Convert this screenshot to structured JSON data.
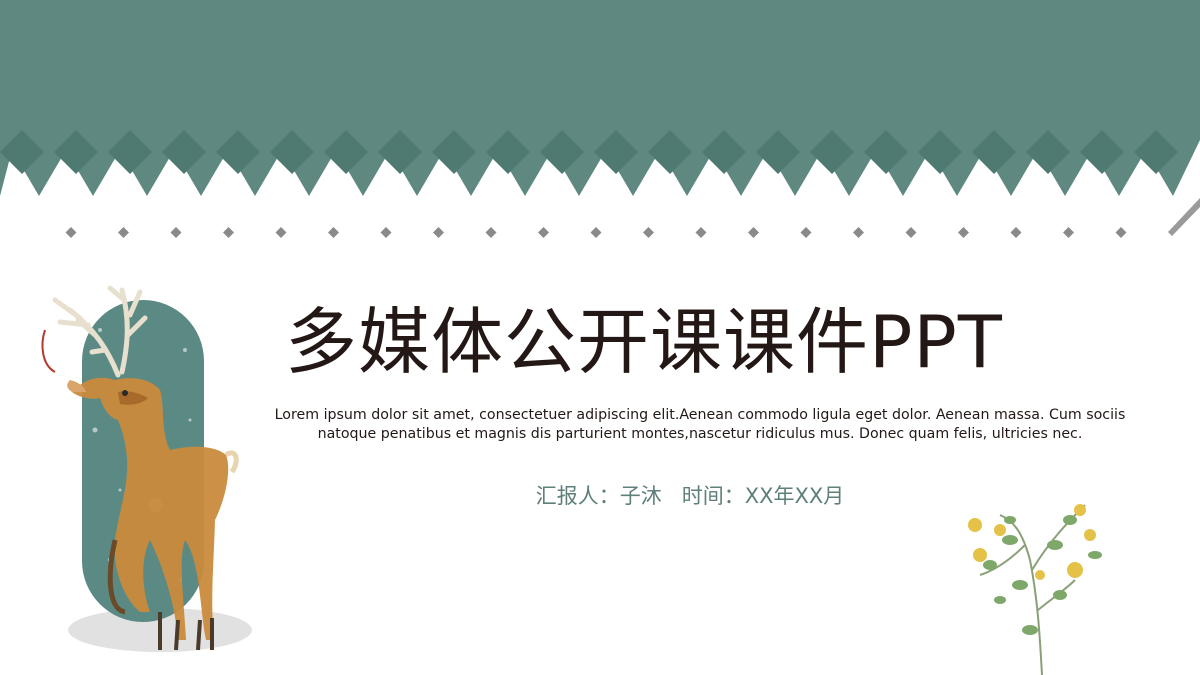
{
  "slide": {
    "title": "多媒体公开课课件PPT",
    "subtitle": "Lorem ipsum dolor sit amet, consectetuer adipiscing elit.Aenean commodo ligula eget dolor. Aenean massa. Cum sociis natoque penatibus et magnis dis parturient montes,nascetur ridiculus mus. Donec quam felis, ultricies nec.",
    "reporter_label": "汇报人：",
    "reporter_name": "子沐",
    "time_label": "时间：",
    "time_value": "XX年XX月"
  },
  "colors": {
    "banner": "#5e8880",
    "banner_dark": "#4f7a71",
    "diamond_gray": "#8a8a8a",
    "title_text": "#231815",
    "accent_text": "#5f7f7a",
    "pill": "#5b8a85"
  }
}
